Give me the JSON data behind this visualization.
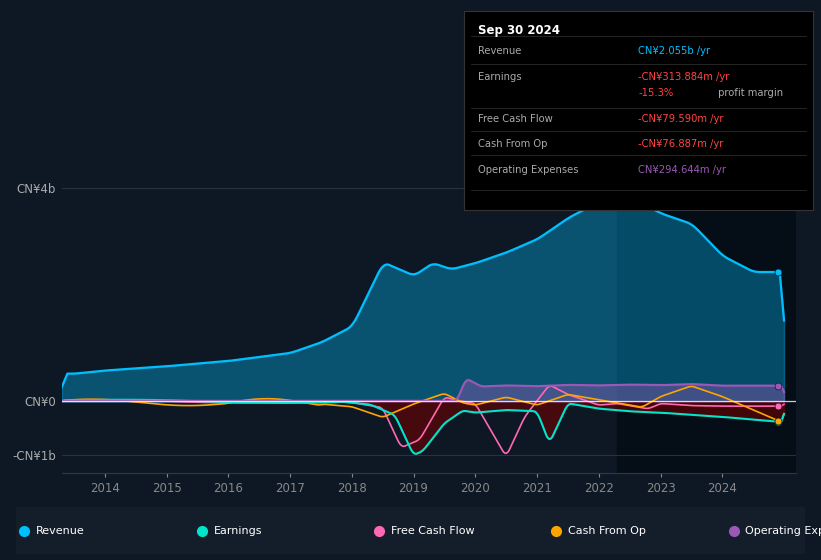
{
  "bg_color": "#0e1825",
  "plot_bg_color": "#0e1825",
  "colors": {
    "revenue": "#00bfff",
    "earnings": "#00e5cc",
    "free_cash_flow": "#ff69b4",
    "cash_from_op": "#ffa500",
    "operating_expenses": "#9b59b6"
  },
  "legend_items": [
    {
      "label": "Revenue",
      "color": "#00bfff"
    },
    {
      "label": "Earnings",
      "color": "#00e5cc"
    },
    {
      "label": "Free Cash Flow",
      "color": "#ff69b4"
    },
    {
      "label": "Cash From Op",
      "color": "#ffa500"
    },
    {
      "label": "Operating Expenses",
      "color": "#9b59b6"
    }
  ],
  "xticks": [
    2014,
    2015,
    2016,
    2017,
    2018,
    2019,
    2020,
    2021,
    2022,
    2023,
    2024
  ],
  "ytick_positions": [
    -1000000000.0,
    0,
    4000000000.0
  ],
  "ytick_labels": [
    "-CN¥1b",
    "CN¥0",
    "CN¥4b"
  ],
  "ylim": [
    -1350000000.0,
    4700000000.0
  ],
  "xlim": [
    2013.3,
    2025.2
  ],
  "zero_line_color": "#ffffff",
  "grid_color": "#2a3a4a",
  "dark_shade_start": 2022.3,
  "dark_shade_color": "#0a1520",
  "info_title": "Sep 30 2024",
  "info_rows": [
    {
      "label": "Revenue",
      "value": "CN¥2.055b /yr",
      "vcolor": "#00bfff"
    },
    {
      "label": "Earnings",
      "value": "-CN¥313.884m /yr",
      "vcolor": "#ff4444"
    },
    {
      "label": "",
      "value": "-15.3%",
      "vcolor": "#ff4444",
      "extra": " profit margin",
      "ecolor": "#aaaaaa"
    },
    {
      "label": "Free Cash Flow",
      "value": "-CN¥79.590m /yr",
      "vcolor": "#ff4444"
    },
    {
      "label": "Cash From Op",
      "value": "-CN¥76.887m /yr",
      "vcolor": "#ff4444"
    },
    {
      "label": "Operating Expenses",
      "value": "CN¥294.644m /yr",
      "vcolor": "#9b59b6"
    }
  ]
}
